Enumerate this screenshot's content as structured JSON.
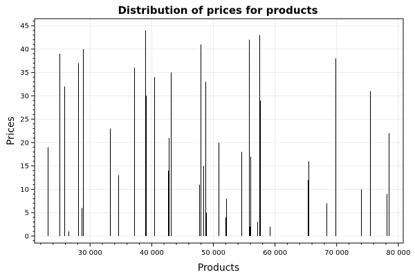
{
  "chart_data": {
    "type": "bar",
    "style": "stem",
    "title": "Distribution of prices for products",
    "xlabel": "Products",
    "ylabel": "Prices",
    "xlim": [
      21000,
      80800
    ],
    "ylim": [
      -1.5,
      46.5
    ],
    "x_major_ticks": [
      30000,
      40000,
      50000,
      60000,
      70000,
      80000
    ],
    "x_tick_labels": [
      "30 000",
      "40 000",
      "50 000",
      "60 000",
      "70 000",
      "80 000"
    ],
    "y_major_ticks": [
      0,
      5,
      10,
      15,
      20,
      25,
      30,
      35,
      40,
      45
    ],
    "y_tick_labels": [
      "0",
      "5",
      "10",
      "15",
      "20",
      "25",
      "30",
      "35",
      "40",
      "45"
    ],
    "grid": true,
    "x": [
      23100,
      25000,
      25050,
      25800,
      26500,
      28100,
      28600,
      28800,
      28850,
      33200,
      34600,
      37100,
      39000,
      39050,
      40400,
      42700,
      42800,
      43100,
      47700,
      47900,
      47950,
      48400,
      48700,
      48850,
      50800,
      52000,
      52050,
      54600,
      55800,
      55850,
      56000,
      57100,
      57500,
      57600,
      59200,
      65300,
      65400,
      68300,
      69800,
      69850,
      74000,
      75400,
      78100,
      78400
    ],
    "y": [
      19,
      25,
      39,
      32,
      1,
      37,
      6,
      40,
      26,
      23,
      13,
      36,
      44,
      30,
      34,
      14,
      21,
      35,
      11,
      41,
      27,
      15,
      33,
      5,
      20,
      4,
      8,
      18,
      42,
      2,
      17,
      3,
      43,
      29,
      2,
      12,
      16,
      7,
      38,
      24,
      10,
      31,
      9,
      22
    ]
  }
}
